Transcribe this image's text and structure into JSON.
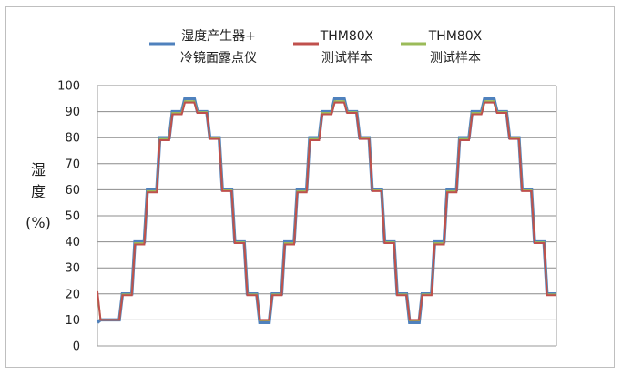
{
  "chart_data": {
    "type": "line",
    "title": "",
    "xlabel": "",
    "ylabel": [
      "湿",
      "度",
      "(%)"
    ],
    "ylim": [
      0,
      100
    ],
    "yticks": [
      0,
      10,
      20,
      30,
      40,
      50,
      60,
      70,
      80,
      90,
      100
    ],
    "grid": "horizontal",
    "legend": {
      "placement": "top",
      "entries": [
        {
          "series": 0,
          "lines": [
            "湿度产生器+",
            "冷镜面露点仪"
          ]
        },
        {
          "series": 1,
          "lines": [
            "THM80X",
            "测试样本"
          ]
        },
        {
          "series": 2,
          "lines": [
            "THM80X",
            "测试样本"
          ]
        }
      ]
    },
    "x": [
      0,
      1,
      7,
      8,
      11,
      12,
      15,
      16,
      19,
      20,
      23,
      24,
      27,
      28,
      31,
      32,
      35,
      36,
      39,
      40,
      43,
      44,
      47,
      48,
      51,
      52,
      55,
      56,
      59,
      60,
      63,
      64,
      67,
      68,
      71,
      72,
      75,
      76,
      79,
      80,
      83,
      84,
      87,
      88,
      91,
      92,
      95,
      96,
      99,
      100,
      103,
      104,
      107,
      108,
      111,
      112,
      115,
      116,
      119,
      120,
      123,
      124,
      127,
      128,
      131,
      132,
      135,
      136,
      139,
      140,
      143,
      144,
      147
    ],
    "series": [
      {
        "name": "湿度产生器+冷镜面露点仪",
        "color": "#4f81bd",
        "values": [
          9,
          10,
          10,
          20,
          20,
          40,
          40,
          60,
          60,
          80,
          80,
          90,
          90,
          95,
          95,
          90,
          90,
          80,
          80,
          60,
          60,
          40,
          40,
          20,
          20,
          9,
          9,
          20,
          20,
          40,
          40,
          60,
          60,
          80,
          80,
          90,
          90,
          95,
          95,
          90,
          90,
          80,
          80,
          60,
          60,
          40,
          40,
          20,
          20,
          9,
          9,
          20,
          20,
          40,
          40,
          60,
          60,
          80,
          80,
          90,
          90,
          95,
          95,
          90,
          90,
          80,
          80,
          60,
          60,
          40,
          40,
          20,
          20
        ]
      },
      {
        "name": "THM80X测试样本",
        "color": "#c0504d",
        "values": [
          21,
          10,
          10,
          19.5,
          19.5,
          39,
          39,
          59,
          59,
          79,
          79,
          89,
          89,
          93.5,
          93.5,
          89.5,
          89.5,
          79.5,
          79.5,
          59.5,
          59.5,
          39.5,
          39.5,
          19.5,
          19.5,
          10,
          10,
          19.5,
          19.5,
          39,
          39,
          59,
          59,
          79,
          79,
          89,
          89,
          93.5,
          93.5,
          89.5,
          89.5,
          79.5,
          79.5,
          59.5,
          59.5,
          39.5,
          39.5,
          19.5,
          19.5,
          10,
          10,
          19.5,
          19.5,
          39,
          39,
          59,
          59,
          79,
          79,
          89,
          89,
          93.5,
          93.5,
          89.5,
          89.5,
          79.5,
          79.5,
          59.5,
          59.5,
          39.5,
          39.5,
          19.5,
          19.5
        ]
      },
      {
        "name": "THM80X测试样本",
        "color": "#9bbb59",
        "values": [
          20,
          10,
          10,
          19.8,
          19.8,
          39.5,
          39.5,
          59.5,
          59.5,
          79.5,
          79.5,
          89.5,
          89.5,
          94,
          94,
          89.8,
          89.8,
          79.8,
          79.8,
          59.8,
          59.8,
          39.8,
          39.8,
          19.8,
          19.8,
          9.8,
          9.8,
          19.8,
          19.8,
          39.5,
          39.5,
          59.5,
          59.5,
          79.5,
          79.5,
          89.5,
          89.5,
          94,
          94,
          89.8,
          89.8,
          79.8,
          79.8,
          59.8,
          59.8,
          39.8,
          39.8,
          19.8,
          19.8,
          9.8,
          9.8,
          19.8,
          19.8,
          39.5,
          39.5,
          59.5,
          59.5,
          79.5,
          79.5,
          89.5,
          89.5,
          94,
          94,
          89.8,
          89.8,
          79.8,
          79.8,
          59.8,
          59.8,
          39.8,
          39.8,
          19.8,
          19.8
        ]
      }
    ]
  }
}
